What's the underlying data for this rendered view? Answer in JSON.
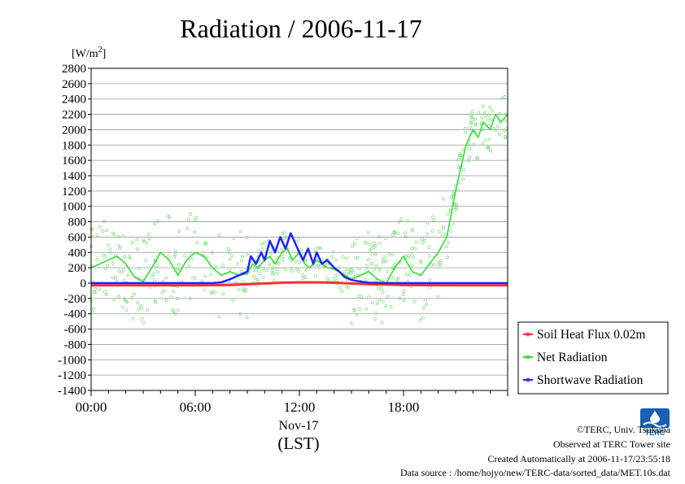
{
  "chart_data": {
    "type": "line",
    "title": "Radiation / 2006-11-17",
    "ylabel_unit": "[W/m",
    "ylabel_sup": "2",
    "ylabel_close": "]",
    "ylim": [
      -1400,
      2800
    ],
    "y_ticks": [
      -1400,
      -1200,
      -1000,
      -800,
      -600,
      -400,
      -200,
      0,
      200,
      400,
      600,
      800,
      1000,
      1200,
      1400,
      1600,
      1800,
      2000,
      2200,
      2400,
      2600,
      2800
    ],
    "y_tick_labels": [
      "-1400",
      "-1200",
      "-1000",
      "-800",
      "-600",
      "-400",
      "-200",
      "0",
      "200",
      "400",
      "600",
      "800",
      "1000",
      "1200",
      "1400",
      "1600",
      "1800",
      "2000",
      "2200",
      "2400",
      "2600",
      "2800"
    ],
    "xlim_hours": [
      0,
      24
    ],
    "x_ticks_hours": [
      0,
      6,
      12,
      18
    ],
    "x_tick_labels": [
      "00:00",
      "06:00",
      "12:00",
      "18:00"
    ],
    "x_date_label": "Nov-17",
    "x_axis_label": "(LST)",
    "grid": "horizontal",
    "legend_position": "right",
    "series": [
      {
        "name": "Soil Heat Flux 0.02m",
        "color": "#ff3030",
        "x_hours": [
          0,
          3,
          6,
          8,
          9,
          10,
          11,
          12,
          13,
          14,
          15,
          16,
          17,
          18,
          21,
          24
        ],
        "values": [
          -30,
          -30,
          -30,
          -25,
          -15,
          -5,
          5,
          10,
          10,
          5,
          -5,
          -15,
          -20,
          -25,
          -30,
          -30
        ]
      },
      {
        "name": "Net Radiation",
        "color": "#33dd33",
        "x_hours": [
          0,
          0.5,
          1,
          1.5,
          2,
          2.5,
          3,
          3.5,
          4,
          4.5,
          5,
          5.5,
          6,
          6.5,
          7,
          7.5,
          8,
          8.5,
          9,
          9.3,
          9.6,
          10,
          10.3,
          10.6,
          11,
          11.3,
          11.6,
          12,
          12.3,
          12.6,
          13,
          13.3,
          13.6,
          14,
          14.5,
          15,
          15.5,
          16,
          16.5,
          17,
          17.5,
          18,
          18.5,
          19,
          19.5,
          20,
          20.5,
          21,
          21.3,
          21.6,
          22,
          22.3,
          22.6,
          23,
          23.3,
          23.6,
          24
        ],
        "values": [
          200,
          250,
          300,
          350,
          250,
          80,
          20,
          200,
          400,
          300,
          100,
          300,
          400,
          350,
          200,
          100,
          150,
          100,
          120,
          250,
          200,
          300,
          350,
          250,
          400,
          450,
          300,
          400,
          250,
          200,
          300,
          250,
          200,
          180,
          120,
          50,
          100,
          150,
          50,
          0,
          200,
          350,
          150,
          100,
          250,
          400,
          600,
          1200,
          1500,
          1800,
          2000,
          1900,
          2100,
          2000,
          2200,
          2100,
          2200
        ]
      },
      {
        "name": "Shortwave Radiation",
        "color": "#2222ff",
        "x_hours": [
          0,
          7,
          7.5,
          8,
          8.5,
          9,
          9.2,
          9.5,
          9.8,
          10,
          10.3,
          10.6,
          10.9,
          11.2,
          11.5,
          11.8,
          12,
          12.2,
          12.5,
          12.8,
          13,
          13.3,
          13.6,
          14,
          14.3,
          14.6,
          15,
          15.5,
          16,
          17,
          24
        ],
        "values": [
          0,
          0,
          10,
          50,
          100,
          150,
          350,
          250,
          400,
          300,
          550,
          400,
          600,
          450,
          650,
          500,
          400,
          300,
          450,
          250,
          400,
          250,
          300,
          200,
          150,
          80,
          40,
          20,
          5,
          0,
          0
        ]
      }
    ]
  },
  "footer": {
    "copyright": "©TERC, Univ. Tsukuba",
    "observed": "Observed at TERC Tower site",
    "created": "Created Automatically at 2006-11-17/23:55:18",
    "source": "Data source : /home/hojyo/new/TERC-data/sorted_data/MET.10s.dat"
  },
  "logo": {
    "text": "TERC",
    "color": "#1a5fb4"
  }
}
